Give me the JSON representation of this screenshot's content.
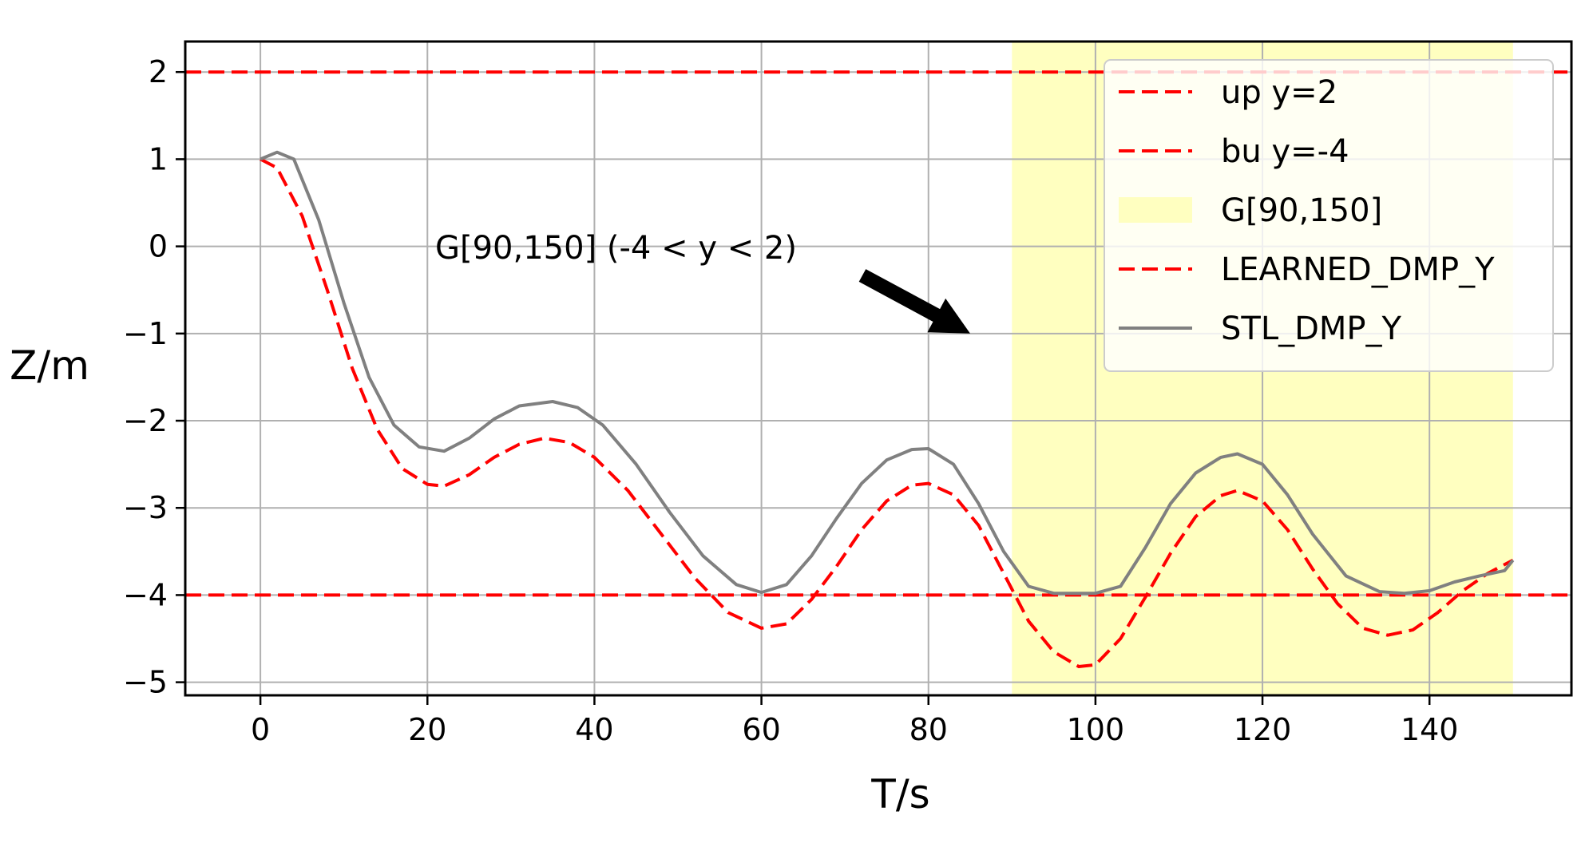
{
  "chart_data": {
    "type": "line",
    "xlabel": "T/s",
    "ylabel": "Z/m",
    "xlim": [
      -9,
      157
    ],
    "ylim": [
      -5.15,
      2.35
    ],
    "xticks": [
      0,
      20,
      40,
      60,
      80,
      100,
      120,
      140
    ],
    "yticks": [
      2,
      1,
      0,
      -1,
      -2,
      -3,
      -4,
      -5
    ],
    "xtick_labels": [
      "0",
      "20",
      "40",
      "60",
      "80",
      "100",
      "120",
      "140"
    ],
    "ytick_labels": [
      "2",
      "1",
      "0",
      "−1",
      "−2",
      "−3",
      "−4",
      "−5"
    ],
    "grid": true,
    "legend_position": "top-right",
    "shaded_region": {
      "label": "G[90,150]",
      "x": [
        90,
        150
      ],
      "color": "#ffffc0"
    },
    "hlines": [
      {
        "name": "up y=2",
        "y": 2,
        "color": "#ff0000",
        "style": "dashed"
      },
      {
        "name": "bu y=-4",
        "y": -4,
        "color": "#ff0000",
        "style": "dashed"
      }
    ],
    "series": [
      {
        "name": "LEARNED_DMP_Y",
        "color": "#ff0000",
        "style": "dashed",
        "x": [
          0,
          2,
          5,
          8,
          11,
          14,
          17,
          20,
          22,
          25,
          28,
          31,
          34,
          37,
          40,
          44,
          48,
          52,
          56,
          60,
          63,
          66,
          69,
          72,
          75,
          78,
          80,
          83,
          86,
          89,
          92,
          95,
          98,
          100,
          103,
          106,
          109,
          112,
          115,
          117,
          120,
          123,
          126,
          129,
          132,
          135,
          138,
          141,
          144,
          147,
          150
        ],
        "y": [
          1.0,
          0.9,
          0.35,
          -0.5,
          -1.4,
          -2.1,
          -2.55,
          -2.73,
          -2.75,
          -2.62,
          -2.42,
          -2.27,
          -2.2,
          -2.25,
          -2.42,
          -2.8,
          -3.3,
          -3.8,
          -4.2,
          -4.38,
          -4.33,
          -4.05,
          -3.67,
          -3.25,
          -2.92,
          -2.74,
          -2.72,
          -2.85,
          -3.2,
          -3.75,
          -4.3,
          -4.65,
          -4.82,
          -4.8,
          -4.5,
          -4.02,
          -3.52,
          -3.1,
          -2.86,
          -2.8,
          -2.92,
          -3.25,
          -3.7,
          -4.1,
          -4.38,
          -4.46,
          -4.4,
          -4.2,
          -3.95,
          -3.75,
          -3.6
        ]
      },
      {
        "name": "STL_DMP_Y",
        "color": "#808080",
        "style": "solid",
        "x": [
          0,
          2,
          4,
          7,
          10,
          13,
          16,
          19,
          22,
          25,
          28,
          31,
          35,
          38,
          41,
          45,
          49,
          53,
          57,
          60,
          63,
          66,
          69,
          72,
          75,
          78,
          80,
          83,
          86,
          89,
          92,
          95,
          100,
          103,
          106,
          109,
          112,
          115,
          117,
          120,
          123,
          126,
          130,
          134,
          137,
          140,
          143,
          146,
          149,
          150
        ],
        "y": [
          1.0,
          1.08,
          1.0,
          0.3,
          -0.65,
          -1.5,
          -2.05,
          -2.3,
          -2.35,
          -2.2,
          -1.98,
          -1.83,
          -1.78,
          -1.85,
          -2.05,
          -2.5,
          -3.05,
          -3.55,
          -3.88,
          -3.97,
          -3.88,
          -3.55,
          -3.12,
          -2.72,
          -2.45,
          -2.33,
          -2.32,
          -2.5,
          -2.95,
          -3.5,
          -3.9,
          -3.98,
          -3.98,
          -3.9,
          -3.45,
          -2.95,
          -2.6,
          -2.42,
          -2.38,
          -2.5,
          -2.85,
          -3.3,
          -3.78,
          -3.96,
          -3.98,
          -3.95,
          -3.85,
          -3.78,
          -3.72,
          -3.6
        ]
      }
    ],
    "legend": [
      {
        "label": "up y=2",
        "kind": "dashed",
        "color": "#ff0000"
      },
      {
        "label": "bu y=-4",
        "kind": "dashed",
        "color": "#ff0000"
      },
      {
        "label": "G[90,150]",
        "kind": "patch",
        "color": "#ffffc0"
      },
      {
        "label": "LEARNED_DMP_Y",
        "kind": "dashed",
        "color": "#ff0000"
      },
      {
        "label": "STL_DMP_Y",
        "kind": "solid",
        "color": "#808080"
      }
    ],
    "annotation": {
      "text": "G[90,150] (-4 < y < 2)",
      "point_to": [
        85,
        -1
      ]
    }
  }
}
